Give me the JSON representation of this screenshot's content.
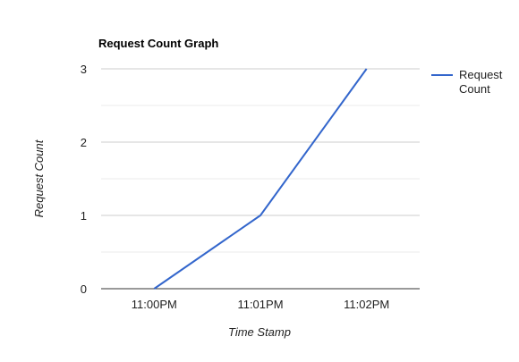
{
  "chart_data": {
    "type": "line",
    "title": "Request Count Graph",
    "xlabel": "Time Stamp",
    "ylabel": "Request Count",
    "categories": [
      "11:00PM",
      "11:01PM",
      "11:02PM"
    ],
    "series": [
      {
        "name": "Request Count",
        "name_lines": [
          "Request",
          "Count"
        ],
        "values": [
          0,
          1,
          3
        ],
        "color": "#3366cc"
      }
    ],
    "ylim": [
      0,
      3
    ],
    "yticks": [
      0,
      1,
      2,
      3
    ],
    "grid": true,
    "legend_position": "right"
  }
}
